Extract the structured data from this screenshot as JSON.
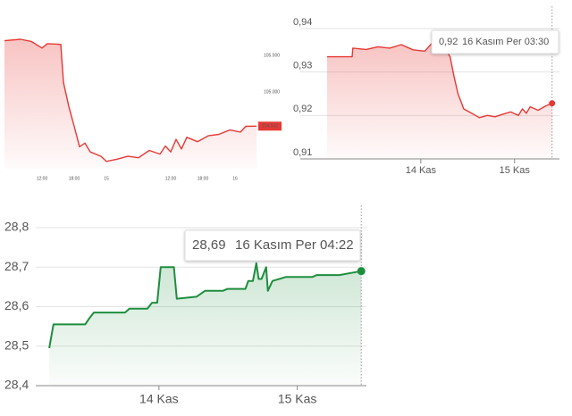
{
  "chart_data": [
    {
      "type": "line",
      "color": "#e53935",
      "grid": false,
      "yaxis_side": "right",
      "x": [
        5,
        8,
        10,
        12,
        13,
        15.5,
        16,
        17,
        18,
        19,
        20,
        21,
        23,
        24,
        26,
        28,
        30,
        32,
        34,
        35,
        36,
        37,
        38,
        39,
        41,
        43,
        45,
        47,
        49,
        50,
        52
      ],
      "values": [
        105.7,
        105.72,
        105.69,
        105.6,
        105.66,
        105.65,
        105.13,
        104.8,
        104.53,
        104.25,
        104.3,
        104.18,
        104.12,
        104.05,
        104.08,
        104.12,
        104.1,
        104.2,
        104.15,
        104.26,
        104.18,
        104.35,
        104.22,
        104.38,
        104.32,
        104.4,
        104.42,
        104.48,
        104.45,
        104.53,
        104.532
      ],
      "xlim": [
        5,
        52
      ],
      "xticks": [
        {
          "value": 12,
          "label": "12:00"
        },
        {
          "value": 18,
          "label": "18:00"
        },
        {
          "value": 24,
          "label": "15"
        },
        {
          "value": 36,
          "label": "12:00"
        },
        {
          "value": 42,
          "label": "18:00"
        },
        {
          "value": 48,
          "label": "16"
        }
      ],
      "ylim": [
        103.95,
        105.75
      ],
      "yticks": [
        {
          "value": 105.5,
          "label": "105.500"
        },
        {
          "value": 105,
          "label": "105.000"
        }
      ],
      "current_value": 104.532
    },
    {
      "type": "line",
      "color": "#e53935",
      "grid": true,
      "yaxis_side": "left",
      "x": [
        0,
        6.4,
        6.6,
        10,
        13,
        16,
        19,
        22,
        25,
        27,
        28,
        30.5,
        31.5,
        32.5,
        33.5,
        35,
        37,
        39,
        41,
        43,
        45,
        47,
        49,
        50,
        51,
        52,
        54,
        56,
        57.6
      ],
      "values": [
        0.9335,
        0.9335,
        0.9355,
        0.9352,
        0.9358,
        0.9355,
        0.9363,
        0.9351,
        0.9348,
        0.9368,
        0.9355,
        0.935,
        0.9335,
        0.929,
        0.925,
        0.9215,
        0.9205,
        0.9195,
        0.92,
        0.9197,
        0.9203,
        0.9208,
        0.92,
        0.9215,
        0.9205,
        0.922,
        0.9212,
        0.9222,
        0.9228
      ],
      "xlim": [
        0,
        59.5
      ],
      "xticks": [
        {
          "value": 24,
          "label": "14 Kas"
        },
        {
          "value": 48,
          "label": "15 Kas"
        }
      ],
      "ylim": [
        0.91,
        0.94
      ],
      "yticks": [
        {
          "value": 0.94,
          "label": "0,94"
        },
        {
          "value": 0.93,
          "label": "0,93"
        },
        {
          "value": 0.92,
          "label": "0,92"
        },
        {
          "value": 0.91,
          "label": "0,91"
        }
      ],
      "tooltip": {
        "value": "0,92",
        "date": "16 Kasım Per 03:30"
      }
    },
    {
      "type": "line",
      "color": "#1e8e3e",
      "grid": true,
      "yaxis_side": "left",
      "x": [
        4.96,
        5.7,
        11.2,
        11.9,
        12.7,
        18.1,
        18.9,
        22,
        22.8,
        23.7,
        24.3,
        26.6,
        27.1,
        30.5,
        32,
        35.1,
        35.9,
        39,
        39.5,
        40.3,
        40.9,
        41.3,
        41.8,
        42.6,
        42.9,
        43.7,
        46,
        50.6,
        51.4,
        55.3,
        59.1
      ],
      "values": [
        28.495,
        28.555,
        28.555,
        28.57,
        28.585,
        28.585,
        28.595,
        28.595,
        28.61,
        28.61,
        28.7,
        28.7,
        28.62,
        28.625,
        28.64,
        28.64,
        28.645,
        28.645,
        28.665,
        28.665,
        28.71,
        28.67,
        28.67,
        28.7,
        28.64,
        28.665,
        28.675,
        28.675,
        28.68,
        28.68,
        28.69
      ],
      "xlim": [
        3.4,
        60
      ],
      "xticks": [
        {
          "value": 24,
          "label": "14 Kas"
        },
        {
          "value": 48,
          "label": "15 Kas"
        }
      ],
      "ylim": [
        28.4,
        28.8
      ],
      "yticks": [
        {
          "value": 28.8,
          "label": "28,8"
        },
        {
          "value": 28.7,
          "label": "28,7"
        },
        {
          "value": 28.6,
          "label": "28,6"
        },
        {
          "value": 28.5,
          "label": "28,5"
        },
        {
          "value": 28.4,
          "label": "28,4"
        }
      ],
      "tooltip": {
        "value": "28,69",
        "date": "16 Kasım Per 04:22"
      }
    }
  ]
}
